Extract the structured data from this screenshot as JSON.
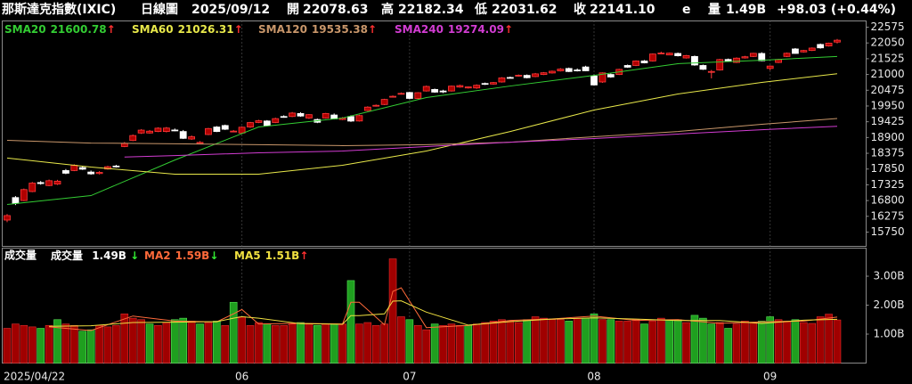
{
  "chart_data": {
    "type": "candlestick",
    "header": {
      "name": "那斯達克指數(IXIC)",
      "period": "日線圖",
      "date": "2025/09/12",
      "fields": [
        {
          "label": "開",
          "value": "22078.63",
          "color": "#ff3b3b"
        },
        {
          "label": "高",
          "value": "22182.34",
          "color": "#ff3b3b"
        },
        {
          "label": "低",
          "value": "22031.62",
          "color": "#33ee33"
        },
        {
          "label": "收",
          "value": "22141.10",
          "color": "#ff3b3b"
        }
      ],
      "estimate": "e",
      "estimate_color": "#8f7dff",
      "volume_label": "量",
      "volume": "1.49B",
      "change": "+98.03 (+0.44%)"
    },
    "categories": [
      "2025/04/22",
      null,
      null,
      null,
      null,
      null,
      null,
      null,
      null,
      null,
      null,
      null,
      null,
      null,
      null,
      null,
      null,
      null,
      null,
      null,
      null,
      null,
      null,
      null,
      null,
      null,
      null,
      null,
      "06",
      null,
      null,
      null,
      null,
      null,
      null,
      null,
      null,
      null,
      null,
      null,
      null,
      null,
      null,
      null,
      null,
      null,
      null,
      null,
      "07",
      null,
      null,
      null,
      null,
      null,
      null,
      null,
      null,
      null,
      null,
      null,
      null,
      null,
      null,
      null,
      null,
      null,
      null,
      null,
      null,
      null,
      "08",
      null,
      null,
      null,
      null,
      null,
      null,
      null,
      null,
      null,
      null,
      null,
      null,
      null,
      null,
      null,
      null,
      null,
      null,
      null,
      null,
      "09",
      null,
      null,
      null,
      null,
      null,
      null,
      null,
      null
    ],
    "open": [
      16150,
      16900,
      16800,
      17100,
      17400,
      17300,
      17350,
      17800,
      17800,
      17900,
      17750,
      17700,
      17850,
      17950,
      18600,
      18800,
      19050,
      19050,
      19100,
      19100,
      19150,
      19100,
      18850,
      18700,
      19000,
      19250,
      19300,
      19100,
      19050,
      19250,
      19400,
      19450,
      19400,
      19600,
      19600,
      19700,
      19550,
      19500,
      19550,
      19650,
      19500,
      19600,
      19450,
      19800,
      19950,
      20000,
      20250,
      20350,
      20400,
      20200,
      20450,
      20500,
      20450,
      20450,
      20580,
      20550,
      20550,
      20700,
      20680,
      20750,
      20900,
      20950,
      20970,
      20930,
      21000,
      21050,
      21120,
      21200,
      21150,
      21250,
      20950,
      20750,
      21000,
      21000,
      21300,
      21300,
      21450,
      21450,
      21700,
      21650,
      21700,
      21550,
      21600,
      21300,
      21100,
      21150,
      21500,
      21400,
      21550,
      21600,
      21700,
      21200,
      21400,
      21600,
      21850,
      21750,
      21800,
      22000,
      21950,
      22078.63
    ],
    "high": [
      16350,
      16950,
      17200,
      17420,
      17450,
      17500,
      17490,
      17850,
      18010,
      17950,
      17800,
      17780,
      17960,
      17990,
      18750,
      19000,
      19180,
      19150,
      19240,
      19250,
      19200,
      19150,
      18970,
      18780,
      19220,
      19280,
      19330,
      19150,
      19270,
      19420,
      19490,
      19480,
      19560,
      19640,
      19750,
      19740,
      19680,
      19530,
      19720,
      19700,
      19580,
      19640,
      19660,
      19940,
      20000,
      20190,
      20300,
      20400,
      20420,
      20410,
      20630,
      20530,
      20490,
      20630,
      20660,
      20600,
      20670,
      20730,
      20750,
      20910,
      20930,
      21000,
      21000,
      21050,
      21080,
      21130,
      21210,
      21230,
      21200,
      21290,
      21000,
      21070,
      21030,
      21190,
      21330,
      21470,
      21480,
      21700,
      21760,
      21730,
      21730,
      21650,
      21630,
      21330,
      21150,
      21520,
      21530,
      21570,
      21620,
      21720,
      21740,
      21300,
      21520,
      21730,
      21880,
      21820,
      21900,
      22030,
      22060,
      22182.34
    ],
    "low": [
      16080,
      16650,
      16780,
      17080,
      17330,
      17280,
      17320,
      17680,
      17780,
      17820,
      17660,
      17670,
      17830,
      17900,
      18580,
      18780,
      19020,
      19030,
      19080,
      19070,
      19110,
      18850,
      18820,
      18680,
      18980,
      19080,
      19150,
      19080,
      19020,
      19220,
      19380,
      19270,
      19380,
      19560,
      19580,
      19590,
      19520,
      19380,
      19530,
      19500,
      19480,
      19420,
      19430,
      19780,
      19930,
      19980,
      20230,
      20330,
      20180,
      20180,
      20430,
      20390,
      20380,
      20430,
      20560,
      20530,
      20520,
      20650,
      20660,
      20730,
      20870,
      20930,
      20870,
      20910,
      20980,
      21030,
      21100,
      21080,
      21100,
      21110,
      20640,
      20720,
      20890,
      20980,
      21220,
      21280,
      21370,
      21430,
      21680,
      21640,
      21600,
      21530,
      21290,
      21150,
      20870,
      21130,
      21430,
      21380,
      21530,
      21580,
      21440,
      21140,
      21380,
      21580,
      21690,
      21730,
      21780,
      21860,
      21930,
      22031.62
    ],
    "close": [
      16300,
      16708,
      17166,
      17382,
      17366,
      17461,
      17446,
      17710,
      17977,
      17844,
      17689,
      17738,
      17928,
      17929,
      18708,
      18966,
      19146,
      19112,
      19211,
      19215,
      19142,
      18872,
      18925,
      18737,
      19199,
      19100,
      19175,
      19114,
      19243,
      19398,
      19460,
      19298,
      19530,
      19591,
      19715,
      19615,
      19662,
      19407,
      19701,
      19521,
      19546,
      19447,
      19630,
      19913,
      19973,
      20168,
      20273,
      20370,
      20202,
      20393,
      20601,
      20412,
      20418,
      20611,
      20630,
      20586,
      20640,
      20677,
      20730,
      20885,
      20896,
      20974,
      20892,
      21020,
      21057,
      21108,
      21178,
      21098,
      21130,
      21122,
      20650,
      21053,
      20916,
      21169,
      21242,
      21450,
      21385,
      21681,
      21713,
      21710,
      21623,
      21629,
      21315,
      21172,
      21100,
      21497,
      21449,
      21544,
      21590,
      21705,
      21456,
      21280,
      21498,
      21707,
      21700,
      21799,
      21879,
      21886,
      22043,
      22141.1
    ],
    "up_color": "#b00000",
    "up_border": "#ff3a3a",
    "down_color": "#ffffff",
    "ylim": [
      15275,
      22783
    ],
    "yticks": [
      22575,
      22050,
      21525,
      21000,
      20475,
      19950,
      19425,
      18900,
      18375,
      17850,
      17325,
      16800,
      16275,
      15750
    ],
    "ma_series": [
      {
        "name": "SMA20",
        "value": "21600.78",
        "arrow": "↑",
        "arrow_color": "#ff3030",
        "color": "#33cc33",
        "x": [
          0,
          10,
          20,
          30,
          40,
          50,
          60,
          70,
          80,
          90,
          99
        ],
        "values": [
          16670,
          16965,
          18150,
          19250,
          19550,
          20230,
          20615,
          20970,
          21360,
          21475,
          21600.78
        ]
      },
      {
        "name": "SMA60",
        "value": "21026.31",
        "arrow": "↑",
        "arrow_color": "#ff3030",
        "color": "#e8e84a",
        "x": [
          0,
          10,
          20,
          30,
          40,
          50,
          60,
          70,
          80,
          90,
          99
        ],
        "values": [
          18215,
          17915,
          17680,
          17680,
          17975,
          18450,
          19100,
          19815,
          20350,
          20735,
          21026.31
        ]
      },
      {
        "name": "SMA120",
        "value": "19535.38",
        "arrow": "↑",
        "arrow_color": "#ff3030",
        "color": "#c8966a",
        "x": [
          0,
          10,
          20,
          30,
          40,
          50,
          60,
          70,
          80,
          90,
          99
        ],
        "values": [
          18805,
          18715,
          18690,
          18660,
          18630,
          18660,
          18745,
          18925,
          19100,
          19340,
          19535.38
        ]
      },
      {
        "name": "SMA240",
        "value": "19274.09",
        "arrow": "↑",
        "arrow_color": "#ff3030",
        "color": "#d23cd2",
        "x": [
          14,
          20,
          30,
          40,
          50,
          60,
          70,
          80,
          90,
          99
        ],
        "values": [
          18250,
          18300,
          18390,
          18450,
          18600,
          18745,
          18865,
          19015,
          19160,
          19274.09
        ]
      }
    ],
    "volume": {
      "title": "成交量",
      "label": "成交量",
      "value": "1.49B",
      "arrow": "↓",
      "arrow_color": "#33ee33",
      "up_color": "#a00000",
      "up_border": "#e03030",
      "down_color": "#1f9f1f",
      "down_border": "#55e055",
      "values": [
        1.2,
        1.35,
        1.3,
        1.25,
        1.2,
        1.3,
        1.5,
        1.35,
        1.3,
        1.1,
        1.15,
        1.3,
        1.25,
        1.3,
        1.7,
        1.55,
        1.5,
        1.35,
        1.3,
        1.4,
        1.5,
        1.55,
        1.45,
        1.35,
        1.4,
        1.45,
        1.3,
        2.1,
        1.6,
        1.3,
        1.4,
        1.35,
        1.3,
        1.3,
        1.35,
        1.4,
        1.35,
        1.3,
        1.35,
        1.35,
        1.35,
        2.85,
        1.35,
        1.4,
        1.3,
        1.35,
        3.6,
        1.6,
        1.5,
        1.3,
        1.15,
        1.35,
        1.3,
        1.35,
        1.3,
        1.3,
        1.35,
        1.4,
        1.45,
        1.5,
        1.45,
        1.4,
        1.5,
        1.6,
        1.55,
        1.5,
        1.5,
        1.45,
        1.55,
        1.55,
        1.7,
        1.5,
        1.5,
        1.45,
        1.45,
        1.5,
        1.35,
        1.45,
        1.55,
        1.5,
        1.5,
        1.4,
        1.65,
        1.55,
        1.35,
        1.4,
        1.2,
        1.35,
        1.45,
        1.4,
        1.45,
        1.6,
        1.5,
        1.45,
        1.5,
        1.4,
        1.37,
        1.6,
        1.69,
        1.49
      ],
      "ylim": [
        0,
        3.97
      ],
      "yticks": [
        {
          "value": 3,
          "label": "3.00B"
        },
        {
          "value": 2,
          "label": "2.00B"
        },
        {
          "value": 1,
          "label": "1.00B"
        }
      ],
      "ma_series": [
        {
          "name": "MA2",
          "value": "1.59B",
          "arrow": "↓",
          "arrow_color": "#33ee33",
          "color": "#ff6a3a",
          "x": [
            0,
            5,
            10,
            15,
            20,
            25,
            27,
            28,
            30,
            35,
            40,
            41,
            42,
            45,
            46,
            47,
            50,
            55,
            60,
            65,
            70,
            75,
            80,
            85,
            90,
            95,
            99
          ],
          "values": [
            null,
            1.25,
            1.125,
            1.625,
            1.45,
            1.425,
            1.7,
            1.85,
            1.35,
            1.375,
            1.35,
            2.1,
            2.1,
            1.325,
            2.475,
            2.6,
            1.225,
            1.3,
            1.475,
            1.525,
            1.625,
            1.475,
            1.5,
            1.375,
            1.425,
            1.45,
            1.59
          ]
        },
        {
          "name": "MA5",
          "value": "1.51B",
          "arrow": "↑",
          "arrow_color": "#ff3030",
          "color": "#f0e040",
          "x": [
            0,
            5,
            10,
            15,
            20,
            25,
            27,
            28,
            30,
            35,
            40,
            41,
            42,
            45,
            46,
            47,
            50,
            55,
            60,
            65,
            70,
            75,
            80,
            85,
            90,
            95,
            99
          ],
          "values": [
            null,
            1.27,
            1.29,
            1.4,
            1.41,
            1.43,
            1.55,
            1.6,
            1.55,
            1.36,
            1.34,
            1.64,
            1.64,
            1.7,
            2.14,
            2.15,
            1.76,
            1.31,
            1.43,
            1.52,
            1.56,
            1.52,
            1.47,
            1.47,
            1.37,
            1.48,
            1.51
          ]
        }
      ]
    }
  }
}
